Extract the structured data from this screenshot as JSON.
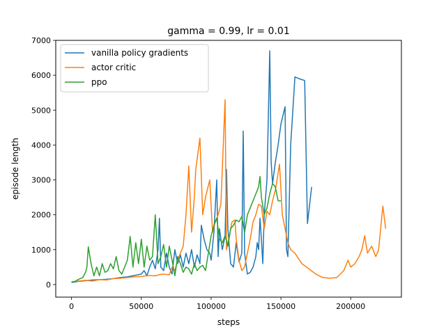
{
  "chart_data": {
    "type": "line",
    "title": "gamma = 0.99, lr = 0.01",
    "xlabel": "steps",
    "ylabel": "episode length",
    "xlim": [
      -11300,
      236300
    ],
    "ylim": [
      -360,
      7000
    ],
    "x_ticks": [
      0,
      50000,
      100000,
      150000,
      200000
    ],
    "x_tick_labels": [
      "0",
      "50000",
      "100000",
      "150000",
      "200000"
    ],
    "y_ticks": [
      0,
      1000,
      2000,
      3000,
      4000,
      5000,
      6000,
      7000
    ],
    "y_tick_labels": [
      "0",
      "1000",
      "2000",
      "3000",
      "4000",
      "5000",
      "6000",
      "7000"
    ],
    "grid": false,
    "legend_position": "upper-left",
    "series": [
      {
        "name": "vanilla policy gradients",
        "color": "#1f77b4",
        "points": [
          [
            0,
            60
          ],
          [
            5000,
            90
          ],
          [
            10000,
            110
          ],
          [
            15000,
            130
          ],
          [
            20000,
            140
          ],
          [
            25000,
            150
          ],
          [
            30000,
            170
          ],
          [
            35000,
            200
          ],
          [
            40000,
            220
          ],
          [
            45000,
            260
          ],
          [
            50000,
            300
          ],
          [
            52000,
            400
          ],
          [
            54000,
            250
          ],
          [
            56000,
            500
          ],
          [
            58000,
            700
          ],
          [
            60000,
            450
          ],
          [
            62000,
            1000
          ],
          [
            63000,
            1900
          ],
          [
            64000,
            500
          ],
          [
            66000,
            400
          ],
          [
            68000,
            900
          ],
          [
            70000,
            500
          ],
          [
            72000,
            300
          ],
          [
            74000,
            1000
          ],
          [
            76000,
            600
          ],
          [
            78000,
            850
          ],
          [
            80000,
            500
          ],
          [
            82000,
            900
          ],
          [
            84000,
            600
          ],
          [
            86000,
            1000
          ],
          [
            88000,
            500
          ],
          [
            90000,
            850
          ],
          [
            92000,
            600
          ],
          [
            93000,
            1700
          ],
          [
            95000,
            1300
          ],
          [
            97000,
            1000
          ],
          [
            99000,
            900
          ],
          [
            100000,
            700
          ],
          [
            102000,
            1500
          ],
          [
            104000,
            3000
          ],
          [
            105000,
            800
          ],
          [
            106000,
            1600
          ],
          [
            108000,
            1000
          ],
          [
            110000,
            1400
          ],
          [
            111000,
            3300
          ],
          [
            112000,
            1600
          ],
          [
            114000,
            600
          ],
          [
            116000,
            500
          ],
          [
            118000,
            1200
          ],
          [
            120000,
            650
          ],
          [
            122000,
            900
          ],
          [
            123000,
            4400
          ],
          [
            124000,
            900
          ],
          [
            126000,
            300
          ],
          [
            128000,
            350
          ],
          [
            130000,
            500
          ],
          [
            132000,
            800
          ],
          [
            133000,
            1200
          ],
          [
            134000,
            1000
          ],
          [
            135000,
            1900
          ],
          [
            136000,
            1300
          ],
          [
            137000,
            600
          ],
          [
            138000,
            2000
          ],
          [
            140000,
            3000
          ],
          [
            142000,
            6700
          ],
          [
            143000,
            3500
          ],
          [
            144000,
            2900
          ],
          [
            146000,
            3500
          ],
          [
            148000,
            4000
          ],
          [
            150000,
            4600
          ],
          [
            153000,
            5100
          ],
          [
            154000,
            1000
          ],
          [
            155000,
            800
          ],
          [
            157000,
            4000
          ],
          [
            160000,
            5950
          ],
          [
            163000,
            5900
          ],
          [
            167000,
            5850
          ],
          [
            169000,
            1750
          ],
          [
            172000,
            2800
          ]
        ]
      },
      {
        "name": "actor critic",
        "color": "#ff7f0e",
        "points": [
          [
            0,
            80
          ],
          [
            5000,
            100
          ],
          [
            10000,
            120
          ],
          [
            15000,
            100
          ],
          [
            20000,
            140
          ],
          [
            25000,
            130
          ],
          [
            30000,
            170
          ],
          [
            35000,
            180
          ],
          [
            40000,
            200
          ],
          [
            45000,
            220
          ],
          [
            50000,
            230
          ],
          [
            55000,
            260
          ],
          [
            60000,
            250
          ],
          [
            65000,
            300
          ],
          [
            70000,
            280
          ],
          [
            72000,
            500
          ],
          [
            74000,
            400
          ],
          [
            76000,
            700
          ],
          [
            78000,
            900
          ],
          [
            80000,
            1100
          ],
          [
            82000,
            2000
          ],
          [
            84000,
            3400
          ],
          [
            86000,
            1500
          ],
          [
            88000,
            2500
          ],
          [
            89000,
            3300
          ],
          [
            92000,
            4200
          ],
          [
            94000,
            2000
          ],
          [
            96000,
            2500
          ],
          [
            99000,
            3000
          ],
          [
            101000,
            1500
          ],
          [
            103000,
            1800
          ],
          [
            105000,
            2000
          ],
          [
            107000,
            2300
          ],
          [
            110000,
            5300
          ],
          [
            111000,
            1000
          ],
          [
            113000,
            1400
          ],
          [
            115000,
            1800
          ],
          [
            117000,
            1850
          ],
          [
            118000,
            1300
          ],
          [
            120000,
            700
          ],
          [
            122000,
            400
          ],
          [
            124000,
            500
          ],
          [
            126000,
            900
          ],
          [
            128000,
            1300
          ],
          [
            130000,
            1800
          ],
          [
            132000,
            2000
          ],
          [
            134000,
            2300
          ],
          [
            136000,
            2250
          ],
          [
            138000,
            1600
          ],
          [
            140000,
            2100
          ],
          [
            142000,
            2000
          ],
          [
            144000,
            2400
          ],
          [
            146000,
            2700
          ],
          [
            148000,
            3200
          ],
          [
            149000,
            3450
          ],
          [
            151000,
            2000
          ],
          [
            153000,
            1600
          ],
          [
            155000,
            1200
          ],
          [
            157000,
            1000
          ],
          [
            160000,
            900
          ],
          [
            165000,
            600
          ],
          [
            170000,
            450
          ],
          [
            175000,
            300
          ],
          [
            180000,
            200
          ],
          [
            185000,
            180
          ],
          [
            190000,
            200
          ],
          [
            195000,
            400
          ],
          [
            198000,
            700
          ],
          [
            200000,
            500
          ],
          [
            203000,
            600
          ],
          [
            206000,
            800
          ],
          [
            208000,
            1000
          ],
          [
            210000,
            1400
          ],
          [
            212000,
            900
          ],
          [
            215000,
            1100
          ],
          [
            218000,
            800
          ],
          [
            220000,
            1000
          ],
          [
            223000,
            2250
          ],
          [
            225000,
            1600
          ]
        ]
      },
      {
        "name": "ppo",
        "color": "#2ca02c",
        "points": [
          [
            0,
            60
          ],
          [
            3000,
            100
          ],
          [
            5000,
            150
          ],
          [
            8000,
            200
          ],
          [
            10000,
            350
          ],
          [
            11000,
            500
          ],
          [
            12000,
            1080
          ],
          [
            14000,
            600
          ],
          [
            16000,
            250
          ],
          [
            18000,
            500
          ],
          [
            20000,
            250
          ],
          [
            22000,
            600
          ],
          [
            24000,
            350
          ],
          [
            26000,
            400
          ],
          [
            28000,
            600
          ],
          [
            30000,
            450
          ],
          [
            32000,
            800
          ],
          [
            34000,
            400
          ],
          [
            36000,
            300
          ],
          [
            38000,
            500
          ],
          [
            40000,
            700
          ],
          [
            42000,
            1380
          ],
          [
            44000,
            500
          ],
          [
            46000,
            1200
          ],
          [
            48000,
            600
          ],
          [
            50000,
            1300
          ],
          [
            52000,
            500
          ],
          [
            54000,
            1100
          ],
          [
            56000,
            700
          ],
          [
            58000,
            800
          ],
          [
            60000,
            2000
          ],
          [
            62000,
            600
          ],
          [
            64000,
            800
          ],
          [
            66000,
            1150
          ],
          [
            68000,
            500
          ],
          [
            70000,
            1100
          ],
          [
            72000,
            700
          ],
          [
            74000,
            250
          ],
          [
            76000,
            800
          ],
          [
            78000,
            600
          ],
          [
            80000,
            350
          ],
          [
            82000,
            500
          ],
          [
            84000,
            450
          ],
          [
            86000,
            300
          ],
          [
            88000,
            600
          ],
          [
            90000,
            400
          ],
          [
            92000,
            500
          ],
          [
            94000,
            550
          ],
          [
            96000,
            400
          ],
          [
            98000,
            900
          ],
          [
            100000,
            1400
          ],
          [
            102000,
            1700
          ],
          [
            104000,
            1900
          ],
          [
            106000,
            1300
          ],
          [
            108000,
            1200
          ],
          [
            110000,
            1400
          ],
          [
            112000,
            1100
          ],
          [
            114000,
            1600
          ],
          [
            116000,
            1700
          ],
          [
            118000,
            1850
          ],
          [
            120000,
            1800
          ],
          [
            122000,
            1950
          ],
          [
            124000,
            1500
          ],
          [
            126000,
            2000
          ],
          [
            128000,
            2200
          ],
          [
            130000,
            2400
          ],
          [
            132000,
            2600
          ],
          [
            134000,
            2800
          ],
          [
            135000,
            3100
          ],
          [
            136000,
            2500
          ],
          [
            138000,
            2000
          ],
          [
            140000,
            2200
          ],
          [
            142000,
            2600
          ],
          [
            144000,
            2900
          ],
          [
            146000,
            2800
          ],
          [
            148000,
            2400
          ],
          [
            150000,
            2400
          ]
        ]
      }
    ]
  }
}
